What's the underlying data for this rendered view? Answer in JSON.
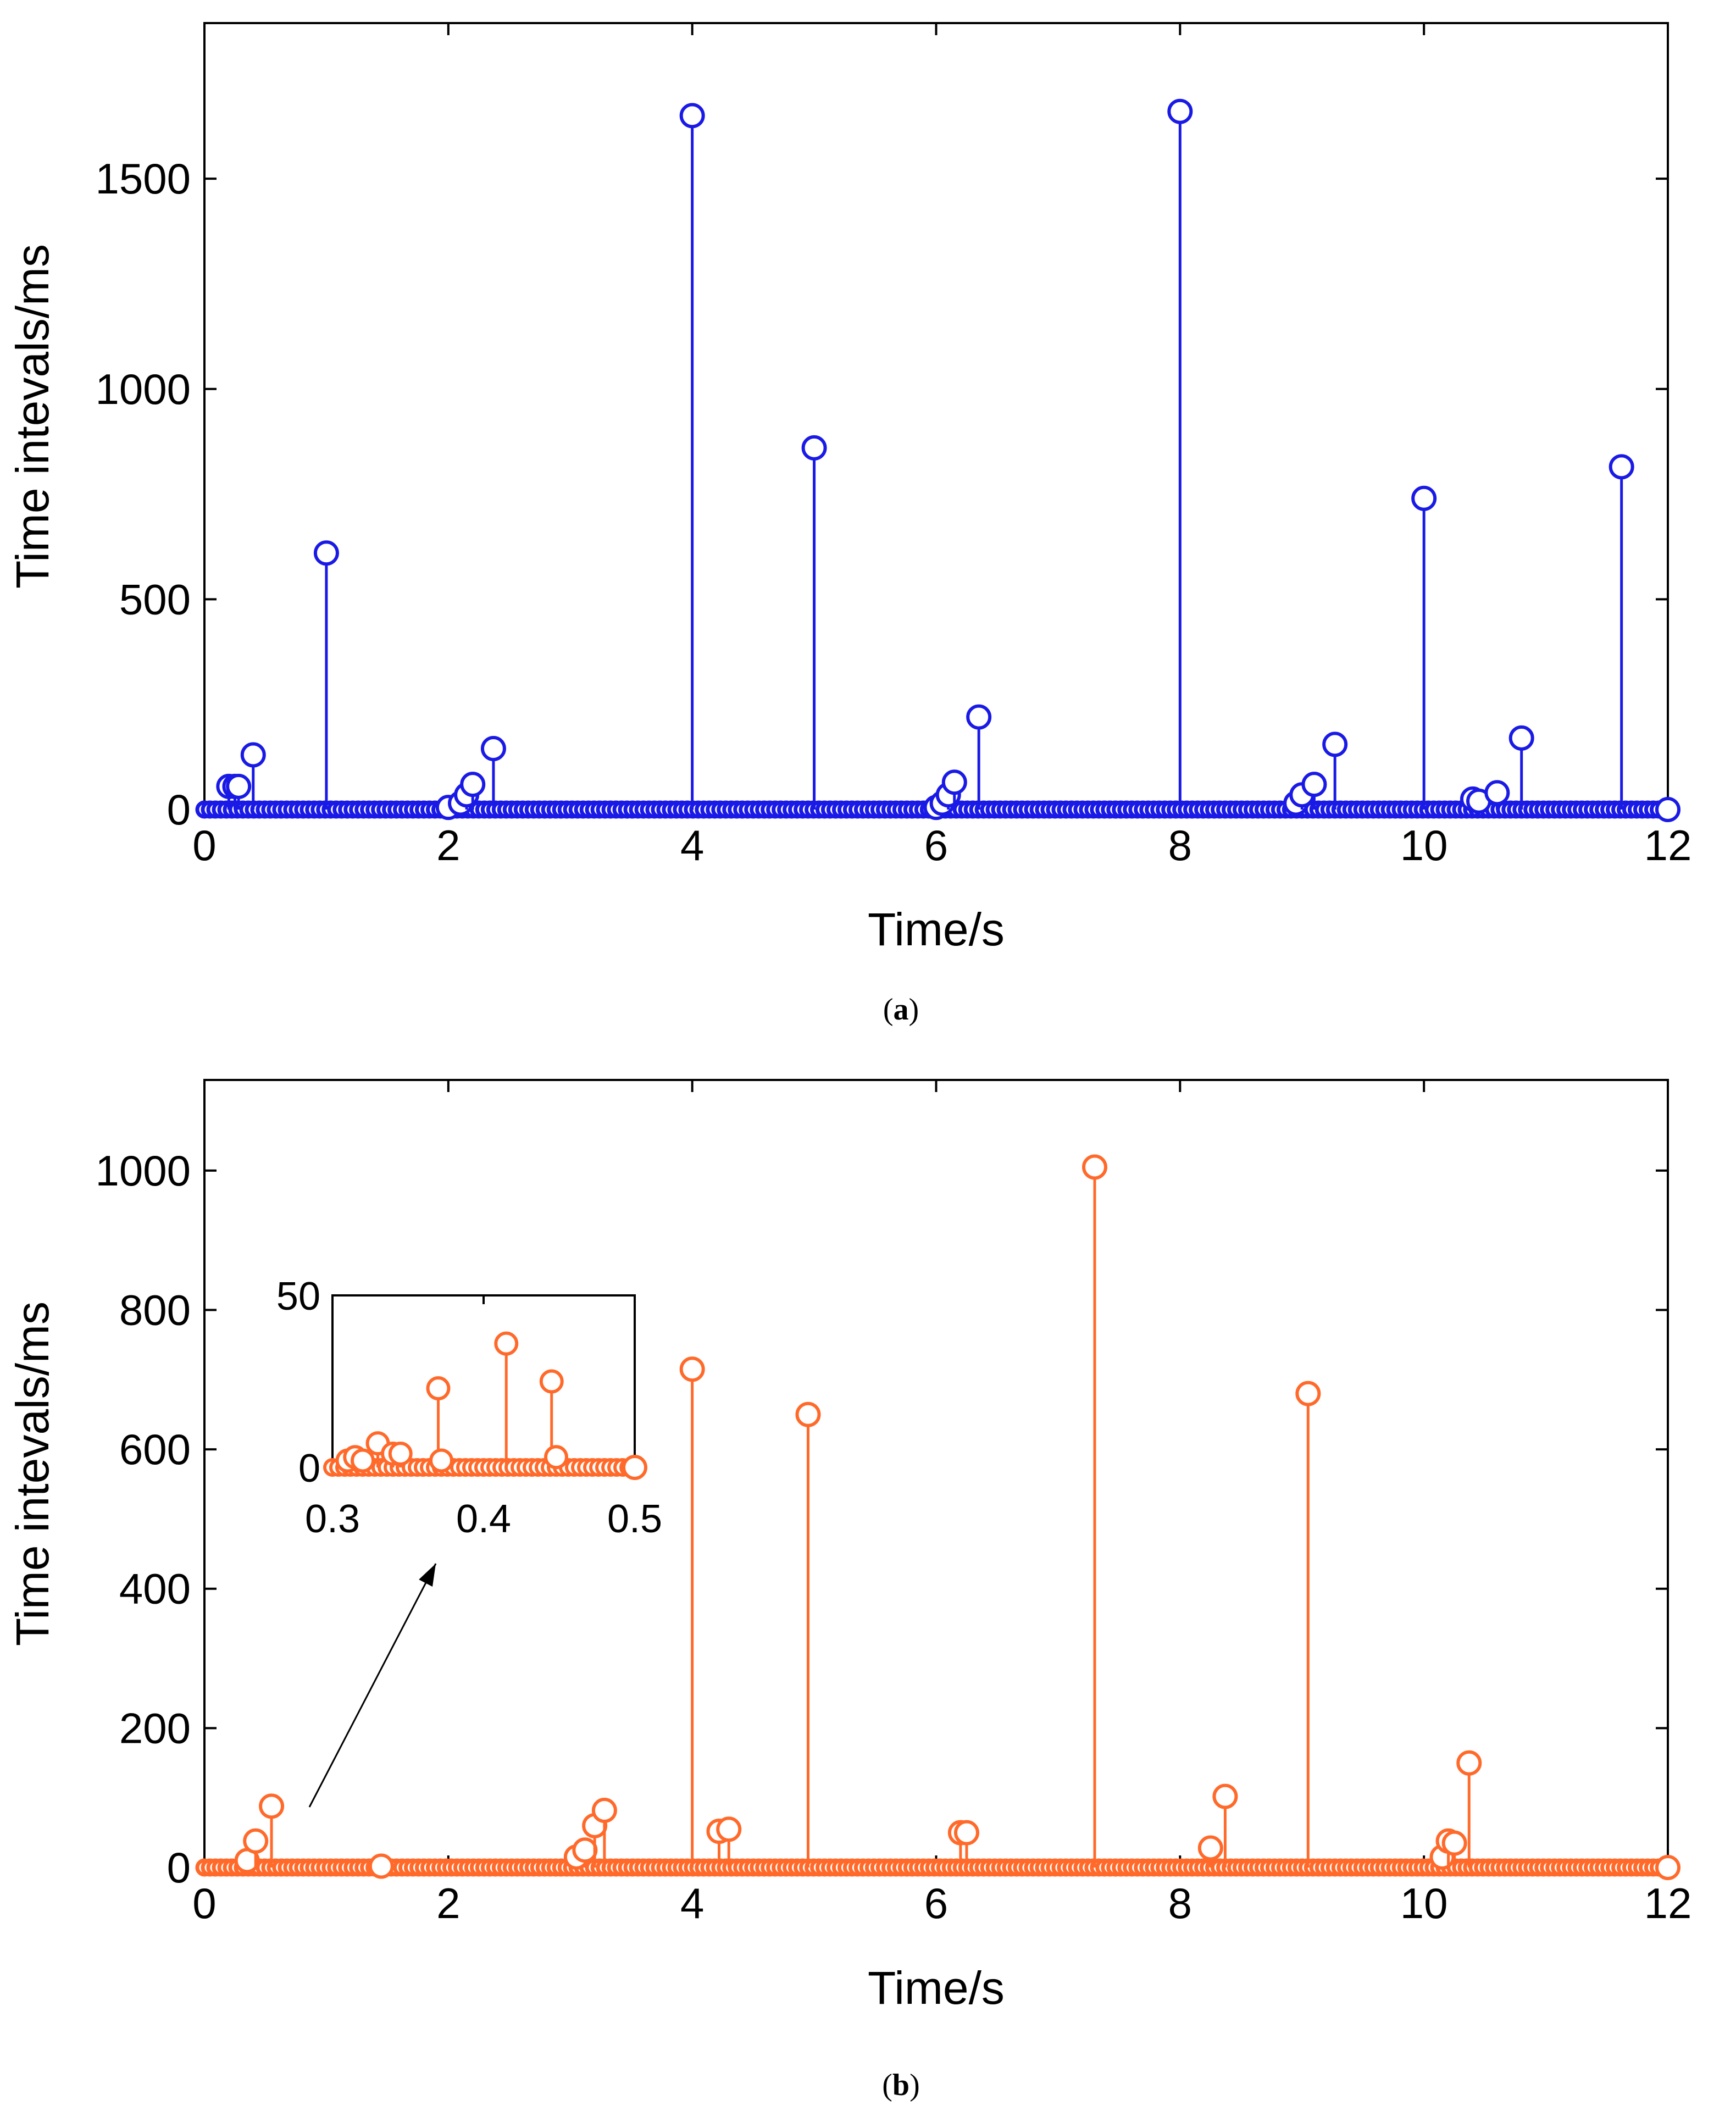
{
  "chart_data": [
    {
      "id": "a",
      "type": "stem",
      "caption": "a",
      "xlabel": "Time/s",
      "ylabel": "Time intevals/ms",
      "xlim": [
        0,
        12
      ],
      "ylim": [
        0,
        1870
      ],
      "xticks": [
        "0",
        "2",
        "4",
        "6",
        "8",
        "10",
        "12"
      ],
      "yticks": [
        "0",
        "500",
        "1000",
        "1500"
      ],
      "color": "#1a1ae6",
      "series": [
        {
          "name": "a",
          "x": [
            0.2,
            0.25,
            0.28,
            0.4,
            1.0,
            2.0,
            2.1,
            2.15,
            2.2,
            2.37,
            4.0,
            5.0,
            6.0,
            6.05,
            6.1,
            6.15,
            6.35,
            8.0,
            8.95,
            9.0,
            9.1,
            9.27,
            10.0,
            10.4,
            10.45,
            10.6,
            10.8,
            11.62
          ],
          "y": [
            55,
            55,
            55,
            130,
            610,
            5,
            15,
            35,
            60,
            145,
            1650,
            860,
            5,
            15,
            35,
            65,
            220,
            1660,
            15,
            35,
            60,
            155,
            740,
            25,
            20,
            40,
            170,
            815
          ]
        }
      ],
      "baseline_markers": "dense open-circle markers along y=0 from x=0 to x=12"
    },
    {
      "id": "b",
      "type": "stem",
      "caption": "b",
      "xlabel": "Time/s",
      "ylabel": "Time intevals/ms",
      "xlim": [
        0,
        12
      ],
      "ylim": [
        0,
        1130
      ],
      "xticks": [
        "0",
        "2",
        "4",
        "6",
        "8",
        "10",
        "12"
      ],
      "yticks": [
        "0",
        "200",
        "400",
        "600",
        "800",
        "1000"
      ],
      "color": "#ff6a2b",
      "series": [
        {
          "name": "b",
          "x": [
            0.35,
            0.42,
            0.55,
            1.45,
            3.05,
            3.12,
            3.2,
            3.28,
            4.0,
            4.22,
            4.3,
            4.95,
            6.2,
            6.25,
            7.3,
            8.25,
            8.37,
            9.05,
            10.15,
            10.2,
            10.25,
            10.37
          ],
          "y": [
            10,
            38,
            88,
            2,
            15,
            25,
            60,
            82,
            715,
            52,
            55,
            650,
            50,
            50,
            1005,
            28,
            102,
            680,
            15,
            38,
            35,
            150
          ]
        }
      ],
      "baseline_markers": "dense open-circle markers along y=0 from x=0 to x=12",
      "inset": {
        "xlim": [
          0.3,
          0.5
        ],
        "ylim": [
          0,
          50
        ],
        "xticks": [
          "0.3",
          "0.4",
          "0.5"
        ],
        "yticks": [
          "0",
          "50"
        ],
        "series": [
          {
            "x": [
              0.31,
              0.315,
              0.32,
              0.33,
              0.34,
              0.345,
              0.37,
              0.372,
              0.415,
              0.445,
              0.448
            ],
            "y": [
              2,
              3,
              2,
              7,
              4,
              4,
              23,
              2,
              36,
              25,
              3
            ]
          }
        ]
      }
    }
  ]
}
